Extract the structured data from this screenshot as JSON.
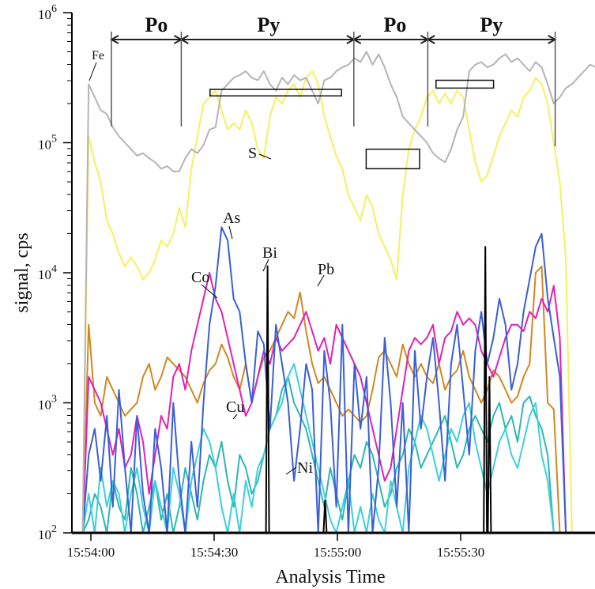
{
  "chart_data": {
    "type": "line",
    "title": "",
    "xlabel": "Analysis Time",
    "ylabel": "signal, cps",
    "yscale": "log",
    "ylim": [
      100,
      1000000
    ],
    "y_ticks": [
      {
        "value": 100,
        "base": "10",
        "exp": "2"
      },
      {
        "value": 1000,
        "base": "10",
        "exp": "3"
      },
      {
        "value": 10000,
        "base": "10",
        "exp": "4"
      },
      {
        "value": 100000,
        "base": "10",
        "exp": "5"
      },
      {
        "value": 1000000,
        "base": "10",
        "exp": "6"
      }
    ],
    "x_unit": "seconds after 15:54:00",
    "xlim": [
      -5,
      122
    ],
    "x_ticks": [
      {
        "value": 0,
        "label": "15:54:00"
      },
      {
        "value": 30,
        "label": "15:54:30"
      },
      {
        "value": 60,
        "label": "15:55:00"
      },
      {
        "value": 90,
        "label": "15:55:30"
      }
    ],
    "grid": false,
    "legend": "none (inline labels)",
    "x_start": -2,
    "x_step": 2,
    "series": [
      {
        "name": "Fe",
        "color": "#b4b4b4",
        "log_values": [
          2.0,
          5.45,
          5.35,
          5.25,
          5.22,
          5.12,
          5.05,
          5.0,
          4.95,
          4.9,
          4.92,
          4.88,
          4.85,
          4.8,
          4.82,
          4.78,
          4.78,
          4.88,
          4.95,
          4.92,
          4.98,
          5.1,
          5.12,
          5.4,
          5.45,
          5.5,
          5.52,
          5.55,
          5.5,
          5.48,
          5.55,
          5.45,
          5.4,
          5.5,
          5.45,
          5.52,
          5.48,
          5.5,
          5.4,
          5.3,
          5.48,
          5.5,
          5.55,
          5.58,
          5.6,
          5.65,
          5.62,
          5.7,
          5.6,
          5.68,
          5.58,
          5.45,
          5.35,
          5.2,
          5.15,
          5.1,
          5.05,
          5.0,
          4.92,
          4.88,
          4.85,
          4.95,
          5.1,
          5.2,
          5.55,
          5.6,
          5.62,
          5.58,
          5.6,
          5.65,
          5.68,
          5.62,
          5.65,
          5.6,
          5.55,
          5.62,
          5.58,
          5.45,
          5.3,
          5.35,
          5.42,
          5.45,
          5.5,
          5.55,
          5.6,
          5.58,
          5.65,
          5.68,
          5.6,
          5.5,
          5.2,
          2.0
        ]
      },
      {
        "name": "S",
        "color": "#f5f060",
        "log_values": [
          2.0,
          5.05,
          4.85,
          4.7,
          4.4,
          4.3,
          4.15,
          4.05,
          4.12,
          4.05,
          3.95,
          4.0,
          4.1,
          4.25,
          4.2,
          4.3,
          4.5,
          4.35,
          4.8,
          5.05,
          5.3,
          5.35,
          5.4,
          5.25,
          5.1,
          5.15,
          5.1,
          5.25,
          5.15,
          4.95,
          4.88,
          5.2,
          5.35,
          5.3,
          5.4,
          5.45,
          5.35,
          5.5,
          5.55,
          5.45,
          5.2,
          5.05,
          4.9,
          4.8,
          4.6,
          4.5,
          4.4,
          4.6,
          4.5,
          4.3,
          4.2,
          4.1,
          3.95,
          4.6,
          4.95,
          5.1,
          5.2,
          5.35,
          5.4,
          5.3,
          5.38,
          5.3,
          5.4,
          5.35,
          5.1,
          4.85,
          4.7,
          4.75,
          4.9,
          5.05,
          5.15,
          5.25,
          5.2,
          5.35,
          5.4,
          5.5,
          5.45,
          5.3,
          5.0,
          4.7,
          4.1,
          2.0
        ]
      },
      {
        "name": "As",
        "color": "#3a5fd6",
        "log_values": [
          2.0,
          2.6,
          2.8,
          2.4,
          2.9,
          2.2,
          3.1,
          2.5,
          2.0,
          2.9,
          2.3,
          2.0,
          2.8,
          2.5,
          2.0,
          3.0,
          2.4,
          2.0,
          2.7,
          2.2,
          3.0,
          3.6,
          3.9,
          4.35,
          4.25,
          3.8,
          3.7,
          3.3,
          3.0,
          3.55,
          3.45,
          2.8,
          3.6,
          3.3,
          3.0,
          2.4,
          2.8,
          3.3,
          3.1,
          2.0,
          3.4,
          3.0,
          2.2,
          3.6,
          2.0,
          3.3,
          2.8,
          3.2,
          2.0,
          2.5,
          3.5,
          3.0,
          2.2,
          3.0,
          2.0,
          3.4,
          2.8,
          3.2,
          3.5,
          3.0,
          2.4,
          3.3,
          3.6,
          3.1,
          2.6,
          3.4,
          3.7,
          3.3,
          3.5,
          3.8,
          3.6,
          3.1,
          3.3,
          3.7,
          3.95,
          4.2,
          4.3,
          3.8,
          3.5,
          3.2,
          2.0,
          2.0
        ]
      },
      {
        "name": "Co",
        "color": "#e020b8",
        "log_values": [
          2.0,
          3.2,
          3.1,
          3.0,
          2.8,
          2.6,
          2.8,
          2.5,
          2.6,
          2.9,
          2.7,
          2.3,
          2.6,
          2.9,
          2.8,
          3.2,
          3.3,
          3.1,
          3.4,
          3.6,
          3.8,
          4.0,
          3.8,
          3.7,
          3.5,
          3.3,
          3.1,
          2.9,
          3.0,
          3.2,
          3.4,
          3.3,
          3.5,
          3.4,
          3.45,
          3.5,
          3.6,
          3.7,
          3.55,
          3.4,
          3.5,
          3.3,
          3.6,
          3.5,
          3.4,
          3.3,
          3.2,
          3.0,
          2.8,
          2.6,
          2.4,
          2.5,
          2.8,
          3.1,
          3.4,
          3.5,
          3.45,
          3.5,
          3.6,
          3.3,
          3.5,
          3.55,
          3.7,
          3.6,
          3.65,
          3.6,
          3.4,
          3.3,
          3.2,
          3.35,
          3.5,
          3.6,
          3.6,
          3.55,
          3.7,
          3.65,
          3.8,
          3.7,
          3.9,
          3.5,
          2.0,
          2.0
        ]
      },
      {
        "name": "Pb",
        "color": "#d08820",
        "log_values": [
          2.0,
          3.6,
          3.0,
          2.9,
          3.2,
          3.1,
          3.0,
          2.9,
          2.95,
          3.0,
          3.2,
          3.3,
          3.1,
          3.2,
          3.35,
          3.3,
          3.25,
          3.2,
          3.1,
          3.0,
          3.15,
          3.25,
          3.3,
          3.45,
          3.35,
          3.2,
          3.1,
          3.3,
          3.0,
          3.2,
          3.35,
          3.4,
          3.5,
          3.6,
          3.7,
          3.65,
          3.85,
          3.55,
          3.3,
          3.15,
          3.2,
          3.1,
          3.0,
          2.9,
          2.95,
          2.9,
          2.85,
          2.9,
          3.1,
          3.35,
          3.4,
          3.3,
          3.2,
          3.45,
          3.3,
          3.2,
          3.3,
          3.2,
          3.15,
          3.3,
          3.1,
          3.2,
          3.25,
          3.4,
          3.2,
          3.1,
          3.0,
          3.1,
          3.25,
          3.2,
          3.1,
          3.0,
          3.05,
          3.2,
          3.3,
          4.0,
          4.05,
          3.0,
          2.95,
          2.0,
          2.0,
          2.0
        ]
      },
      {
        "name": "Cu",
        "color": "#3ccfdc",
        "log_values": [
          2.0,
          2.3,
          2.0,
          2.5,
          2.2,
          2.4,
          2.3,
          2.0,
          2.3,
          2.5,
          2.2,
          2.0,
          2.4,
          2.2,
          2.0,
          2.5,
          2.3,
          2.0,
          2.4,
          2.6,
          2.8,
          2.7,
          2.5,
          2.2,
          2.0,
          2.3,
          2.0,
          2.4,
          2.2,
          2.5,
          2.6,
          2.8,
          2.9,
          3.0,
          3.2,
          3.3,
          3.1,
          2.9,
          2.7,
          2.5,
          2.3,
          2.1,
          2.0,
          2.2,
          2.4,
          2.0,
          2.2,
          2.0,
          2.3,
          2.1,
          2.0,
          2.4,
          2.2,
          2.0,
          2.5,
          2.7,
          2.9,
          2.8,
          2.6,
          2.4,
          2.6,
          2.8,
          2.7,
          2.9,
          3.0,
          2.7,
          2.5,
          2.3,
          2.5,
          2.7,
          2.8,
          2.6,
          2.5,
          2.7,
          2.9,
          3.0,
          2.6,
          2.4,
          2.0,
          2.0,
          2.0,
          2.0
        ]
      },
      {
        "name": "Ni",
        "color": "#2cb8b0",
        "log_values": [
          2.0,
          2.1,
          2.3,
          2.2,
          2.0,
          2.4,
          2.2,
          2.1,
          2.5,
          2.3,
          2.0,
          2.2,
          2.4,
          2.1,
          2.3,
          2.0,
          2.2,
          2.5,
          2.3,
          2.1,
          2.4,
          2.6,
          2.5,
          2.7,
          2.4,
          2.2,
          2.6,
          2.5,
          2.3,
          2.4,
          2.6,
          2.8,
          2.9,
          3.1,
          3.2,
          3.0,
          2.9,
          2.8,
          2.6,
          2.4,
          2.2,
          2.5,
          2.3,
          2.1,
          2.4,
          2.6,
          2.5,
          2.7,
          2.6,
          2.4,
          2.2,
          2.3,
          2.5,
          2.6,
          2.8,
          2.7,
          2.5,
          2.6,
          2.7,
          2.8,
          2.9,
          2.7,
          2.5,
          2.6,
          2.8,
          2.9,
          2.8,
          2.7,
          2.9,
          3.0,
          2.8,
          2.9,
          2.7,
          3.0,
          3.05,
          2.9,
          2.8,
          2.6,
          2.0,
          2.0,
          2.0,
          2.0
        ]
      },
      {
        "name": "Bi",
        "color": "#000000",
        "spikes": [
          {
            "t": 43,
            "log": 4.05
          },
          {
            "t": 57,
            "log": 2.25
          },
          {
            "t": 96,
            "log": 4.2
          },
          {
            "t": 97,
            "log": 3.2
          }
        ]
      }
    ]
  },
  "annotations": {
    "regions": [
      {
        "label": "Po",
        "t_start": 5,
        "t_end": 22
      },
      {
        "label": "Py",
        "t_start": 22,
        "t_end": 64
      },
      {
        "label": "Po",
        "t_start": 64,
        "t_end": 82
      },
      {
        "label": "Py",
        "t_start": 82,
        "t_end": 113
      }
    ],
    "boxes": [
      {
        "t_start": 29,
        "t_end": 61,
        "log_low": 5.36,
        "log_high": 5.41
      },
      {
        "t_start": 67,
        "t_end": 80,
        "log_low": 4.8,
        "log_high": 4.95
      },
      {
        "t_start": 84,
        "t_end": 98,
        "log_low": 5.42,
        "log_high": 5.48
      }
    ],
    "labels": {
      "fe": "Fe",
      "s": "S",
      "as": "As",
      "bi": "Bi",
      "pb": "Pb",
      "co": "Co",
      "cu": "Cu",
      "ni": "Ni"
    }
  }
}
